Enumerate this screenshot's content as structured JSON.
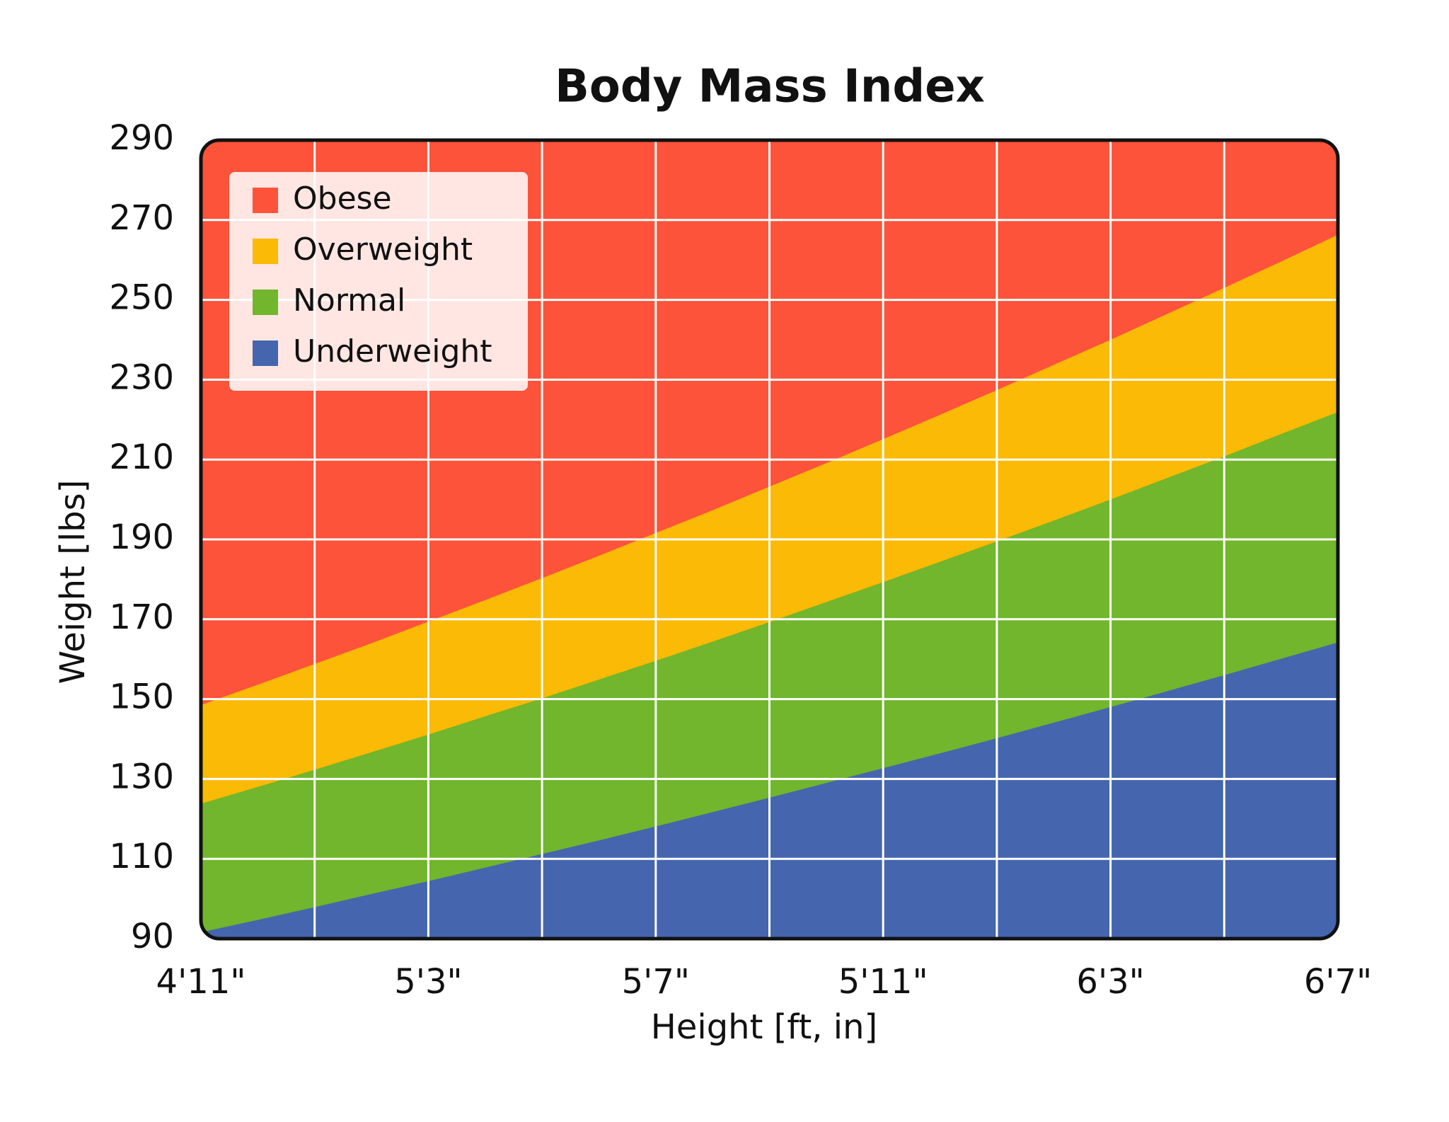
{
  "chart_data": {
    "type": "area",
    "title": "Body Mass Index",
    "x_label": "Height  [ft, in]",
    "y_label": "Weight [lbs]",
    "x": [
      59,
      60,
      61,
      62,
      63,
      64,
      65,
      66,
      67,
      68,
      69,
      70,
      71,
      72,
      73,
      74,
      75,
      76,
      77,
      78,
      79
    ],
    "series": [
      {
        "name": "Obese",
        "color": "#fc533a"
      },
      {
        "name": "Overweight",
        "color": "#fbba05",
        "values": [
          148.5,
          153.6,
          158.8,
          164.0,
          169.4,
          174.8,
          180.3,
          185.9,
          191.6,
          197.3,
          203.2,
          209.1,
          215.1,
          221.2,
          227.4,
          233.7,
          240.0,
          246.5,
          253.0,
          259.6,
          266.3
        ]
      },
      {
        "name": "Normal",
        "color": "#71b62c",
        "values": [
          123.8,
          128.0,
          132.3,
          136.7,
          141.1,
          145.7,
          150.2,
          154.9,
          159.6,
          164.4,
          169.3,
          174.3,
          179.3,
          184.4,
          189.5,
          194.7,
          200.0,
          205.4,
          210.8,
          216.4,
          221.9
        ]
      },
      {
        "name": "Underweight",
        "color": "#4566ae",
        "values": [
          91.6,
          94.7,
          97.9,
          101.2,
          104.4,
          107.8,
          111.2,
          114.6,
          118.1,
          121.7,
          125.3,
          129.0,
          132.7,
          136.4,
          140.2,
          144.1,
          148.0,
          152.0,
          156.0,
          160.1,
          164.2
        ]
      }
    ],
    "xlim": [
      59,
      79
    ],
    "xticks": [
      {
        "value": 59,
        "label": "4'11\""
      },
      {
        "value": 63,
        "label": "5'3\""
      },
      {
        "value": 67,
        "label": "5'7\""
      },
      {
        "value": 71,
        "label": "5'11\""
      },
      {
        "value": 75,
        "label": "6'3\""
      },
      {
        "value": 79,
        "label": "6'7\""
      }
    ],
    "xminor": [
      61,
      65,
      69,
      73,
      77
    ],
    "ylim": [
      90,
      290
    ],
    "yticks": [
      90,
      110,
      130,
      150,
      170,
      190,
      210,
      230,
      250,
      270,
      290
    ],
    "grid": true,
    "legend": "upper left"
  }
}
